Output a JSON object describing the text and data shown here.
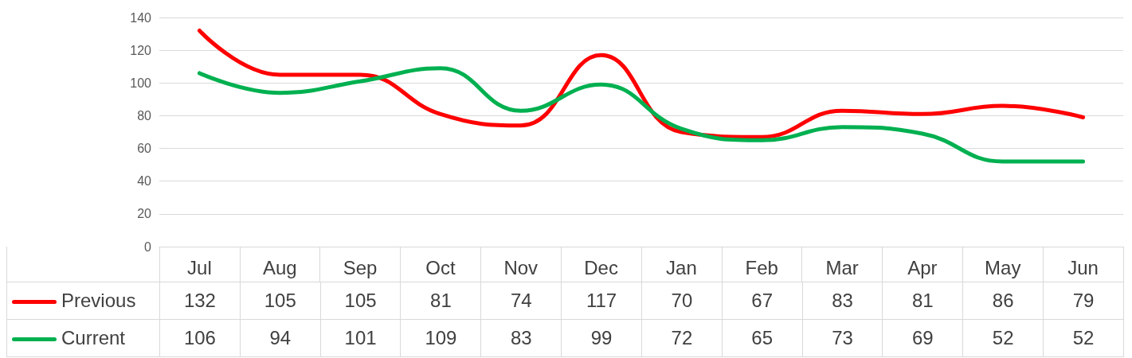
{
  "chart_data": {
    "type": "line",
    "categories": [
      "Jul",
      "Aug",
      "Sep",
      "Oct",
      "Nov",
      "Dec",
      "Jan",
      "Feb",
      "Mar",
      "Apr",
      "May",
      "Jun"
    ],
    "series": [
      {
        "name": "Previous",
        "color": "#ff0000",
        "values": [
          132,
          105,
          105,
          81,
          74,
          117,
          70,
          67,
          83,
          81,
          86,
          79
        ]
      },
      {
        "name": "Current",
        "color": "#00b050",
        "values": [
          106,
          94,
          101,
          109,
          83,
          99,
          72,
          65,
          73,
          69,
          52,
          52
        ]
      }
    ],
    "ylim": [
      0,
      140
    ],
    "yticks": [
      0,
      20,
      40,
      60,
      80,
      100,
      120,
      140
    ],
    "grid": "y",
    "legend": "bottom",
    "marker": "none",
    "line_style": "solid",
    "data_labels": true
  }
}
